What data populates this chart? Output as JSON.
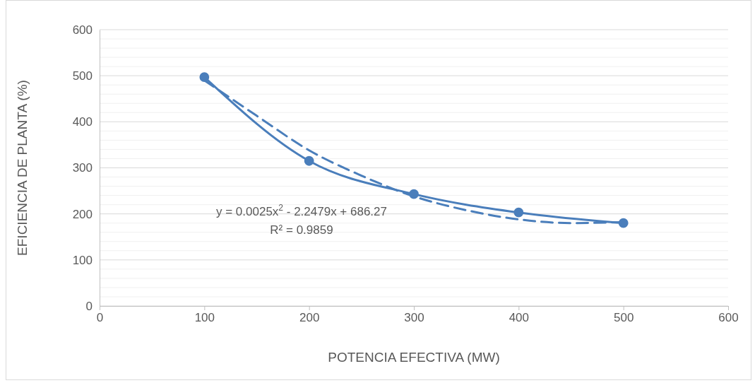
{
  "chart_data": {
    "type": "line",
    "xlabel": "POTENCIA EFECTIVA (MW)",
    "ylabel": "EFICIENCIA DE PLANTA (%)",
    "xlim": [
      0,
      600
    ],
    "xticks": [
      0,
      100,
      200,
      300,
      400,
      500,
      600
    ],
    "ylim": [
      0,
      600
    ],
    "yticks": [
      0,
      {
        "value": 20,
        "label": null
      },
      {
        "value": 40,
        "label": null
      },
      {
        "value": 60,
        "label": null
      },
      {
        "value": 80,
        "label": null
      },
      100,
      {
        "value": 120,
        "label": null
      },
      {
        "value": 140,
        "label": null
      },
      {
        "value": 160,
        "label": null
      },
      {
        "value": 180,
        "label": null
      },
      200,
      {
        "value": 220,
        "label": null
      },
      {
        "value": 240,
        "label": null
      },
      {
        "value": 260,
        "label": null
      },
      {
        "value": 280,
        "label": null
      },
      300,
      {
        "value": 320,
        "label": null
      },
      {
        "value": 340,
        "label": null
      },
      {
        "value": 360,
        "label": null
      },
      {
        "value": 380,
        "label": null
      },
      400,
      {
        "value": 420,
        "label": null
      },
      {
        "value": 440,
        "label": null
      },
      {
        "value": 460,
        "label": null
      },
      {
        "value": 480,
        "label": null
      },
      500,
      {
        "value": 520,
        "label": null
      },
      {
        "value": 540,
        "label": null
      },
      {
        "value": 560,
        "label": null
      },
      {
        "value": 580,
        "label": null
      },
      600
    ],
    "grid": "y",
    "series": [
      {
        "color": "#4a7ebb",
        "x": [
          100,
          200,
          300,
          400,
          500
        ],
        "values": [
          497,
          315,
          243,
          203,
          180
        ],
        "marker": "circle",
        "line_style": "solid"
      },
      {
        "color": "#4a7ebb",
        "x": [
          100,
          150,
          200,
          250,
          300,
          350,
          400,
          450,
          500
        ],
        "values": [
          490,
          413,
          338,
          283,
          238,
          208,
          188,
          180,
          182
        ],
        "marker": "none",
        "line_style": "dashed"
      }
    ],
    "annotations": [
      "y = 0.0025x$^{2}$ - 2.2479x + 686.27",
      "R² = 0.9859"
    ]
  }
}
